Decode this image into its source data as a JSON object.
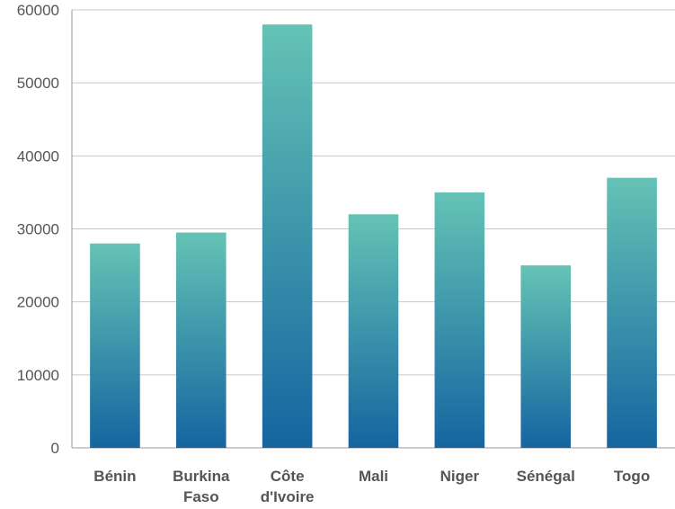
{
  "chart_data": {
    "type": "bar",
    "title": "",
    "xlabel": "",
    "ylabel": "",
    "categories": [
      "Bénin",
      "Burkina Faso",
      "Côte d'Ivoire",
      "Mali",
      "Niger",
      "Sénégal",
      "Togo"
    ],
    "category_lines": [
      [
        "Bénin"
      ],
      [
        "Burkina",
        "Faso"
      ],
      [
        "Côte",
        "d'Ivoire"
      ],
      [
        "Mali"
      ],
      [
        "Niger"
      ],
      [
        "Sénégal"
      ],
      [
        "Togo"
      ]
    ],
    "values": [
      28000,
      29500,
      58000,
      32000,
      35000,
      25000,
      37000
    ],
    "ylim": [
      0,
      60000
    ],
    "yticks": [
      0,
      10000,
      20000,
      30000,
      40000,
      50000,
      60000
    ],
    "ytick_labels": [
      "0",
      "10000",
      "20000",
      "30000",
      "40000",
      "50000",
      "60000"
    ],
    "grid": true,
    "legend": "none",
    "colors": {
      "bar_bottom": "#1565a0",
      "bar_top": "#64c3b5",
      "grid": "#c8c8c8",
      "axis": "#999999",
      "text": "#555555"
    }
  }
}
